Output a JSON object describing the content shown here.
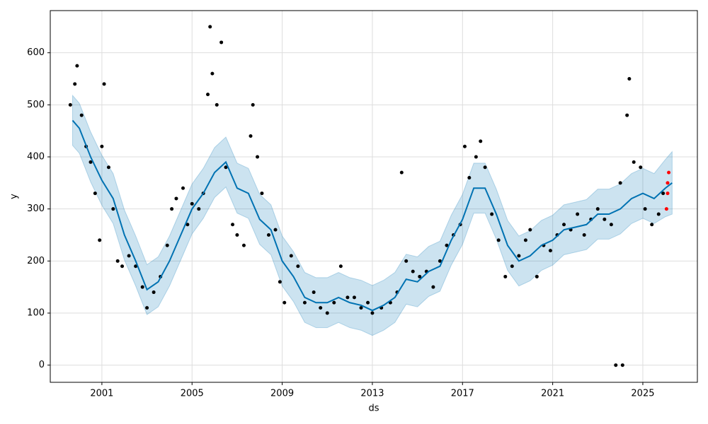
{
  "chart_data": {
    "type": "forecast",
    "x_label": "ds",
    "y_label": "y",
    "xlim": [
      1998.71,
      2027.42
    ],
    "ylim": [
      -33,
      681
    ],
    "xticks": [
      2001,
      2005,
      2009,
      2013,
      2017,
      2021,
      2025
    ],
    "yticks": [
      0,
      100,
      200,
      300,
      400,
      500,
      600
    ],
    "grid": true,
    "forecast": {
      "color": "#0072b2",
      "x": [
        1999.7,
        2000,
        2000.5,
        2001,
        2001.5,
        2002,
        2002.5,
        2003,
        2003.5,
        2004,
        2004.5,
        2005,
        2005.5,
        2006,
        2006.5,
        2007,
        2007.5,
        2008,
        2008.5,
        2009,
        2009.5,
        2010,
        2010.5,
        2011,
        2011.5,
        2012,
        2012.5,
        2013,
        2013.5,
        2014,
        2014.5,
        2015,
        2015.5,
        2016,
        2016.5,
        2017,
        2017.5,
        2018,
        2018.5,
        2019,
        2019.5,
        2020,
        2020.5,
        2021,
        2021.5,
        2022,
        2022.5,
        2023,
        2023.5,
        2024,
        2024.5,
        2025,
        2025.5,
        2026,
        2026.3
      ],
      "values": [
        470,
        455,
        400,
        355,
        320,
        250,
        200,
        145,
        160,
        200,
        250,
        300,
        330,
        370,
        390,
        340,
        330,
        280,
        260,
        200,
        170,
        130,
        120,
        120,
        130,
        120,
        115,
        105,
        115,
        130,
        165,
        160,
        180,
        190,
        240,
        280,
        340,
        340,
        290,
        230,
        200,
        210,
        230,
        240,
        260,
        265,
        270,
        290,
        290,
        300,
        320,
        330,
        320,
        340,
        350
      ],
      "lower": [
        422,
        407,
        352,
        307,
        272,
        202,
        152,
        97,
        112,
        152,
        202,
        252,
        282,
        322,
        342,
        292,
        282,
        232,
        212,
        152,
        122,
        82,
        72,
        72,
        82,
        72,
        67,
        57,
        67,
        82,
        117,
        112,
        132,
        142,
        192,
        232,
        292,
        292,
        242,
        182,
        152,
        162,
        182,
        192,
        212,
        217,
        222,
        242,
        242,
        252,
        272,
        282,
        272,
        285,
        290
      ],
      "upper": [
        518,
        503,
        448,
        403,
        368,
        298,
        248,
        193,
        208,
        248,
        298,
        348,
        378,
        418,
        438,
        388,
        378,
        328,
        308,
        248,
        218,
        178,
        168,
        168,
        178,
        168,
        163,
        153,
        163,
        178,
        213,
        208,
        228,
        238,
        288,
        328,
        388,
        388,
        338,
        278,
        248,
        258,
        278,
        288,
        308,
        313,
        318,
        338,
        338,
        348,
        368,
        378,
        368,
        395,
        410
      ]
    },
    "observed": {
      "color": "#000000",
      "x": [
        1999.6,
        1999.8,
        1999.9,
        2000.1,
        2000.3,
        2000.5,
        2000.7,
        2000.9,
        2001.0,
        2001.1,
        2001.3,
        2001.5,
        2001.7,
        2001.9,
        2002.2,
        2002.5,
        2002.8,
        2003.0,
        2003.3,
        2003.6,
        2003.9,
        2004.1,
        2004.3,
        2004.6,
        2004.8,
        2005.0,
        2005.3,
        2005.5,
        2005.7,
        2005.8,
        2005.9,
        2006.1,
        2006.3,
        2006.5,
        2006.8,
        2007.0,
        2007.3,
        2007.6,
        2007.7,
        2007.9,
        2008.1,
        2008.4,
        2008.7,
        2008.9,
        2009.1,
        2009.4,
        2009.7,
        2010.0,
        2010.4,
        2010.7,
        2011.0,
        2011.3,
        2011.6,
        2011.9,
        2012.2,
        2012.5,
        2012.8,
        2013.0,
        2013.4,
        2013.8,
        2014.1,
        2014.3,
        2014.5,
        2014.8,
        2015.1,
        2015.4,
        2015.7,
        2016.0,
        2016.3,
        2016.6,
        2016.9,
        2017.1,
        2017.3,
        2017.6,
        2017.8,
        2018.0,
        2018.3,
        2018.6,
        2018.9,
        2019.2,
        2019.5,
        2019.8,
        2020.0,
        2020.3,
        2020.6,
        2020.9,
        2021.2,
        2021.5,
        2021.8,
        2022.1,
        2022.4,
        2022.7,
        2023.0,
        2023.3,
        2023.6,
        2023.8,
        2024.0,
        2024.1,
        2024.3,
        2024.4,
        2024.6,
        2024.9,
        2025.1,
        2025.4,
        2025.7,
        2025.9
      ],
      "values": [
        500,
        540,
        575,
        480,
        420,
        390,
        330,
        240,
        420,
        540,
        380,
        300,
        200,
        190,
        210,
        190,
        150,
        110,
        140,
        170,
        230,
        300,
        320,
        340,
        270,
        310,
        300,
        330,
        520,
        650,
        560,
        500,
        620,
        380,
        270,
        250,
        230,
        440,
        500,
        400,
        330,
        250,
        260,
        160,
        120,
        210,
        190,
        120,
        140,
        110,
        100,
        120,
        190,
        130,
        130,
        110,
        120,
        100,
        110,
        120,
        140,
        370,
        200,
        180,
        170,
        180,
        150,
        200,
        230,
        250,
        270,
        420,
        360,
        400,
        430,
        380,
        290,
        240,
        170,
        190,
        210,
        240,
        260,
        170,
        230,
        220,
        250,
        270,
        260,
        290,
        250,
        280,
        300,
        280,
        270,
        0,
        350,
        0,
        480,
        550,
        390,
        380,
        300,
        270,
        290,
        330
      ]
    },
    "recent": {
      "color": "#ff0000",
      "x": [
        2026.05,
        2026.1,
        2026.1,
        2026.15
      ],
      "values": [
        300,
        330,
        350,
        370
      ]
    }
  }
}
